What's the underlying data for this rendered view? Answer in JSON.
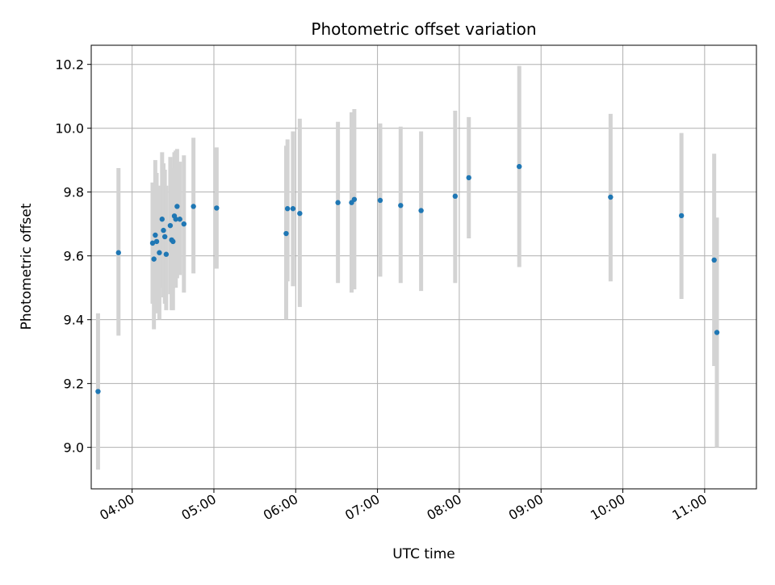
{
  "chart_data": {
    "type": "scatter",
    "title": "Photometric offset variation",
    "xlabel": "UTC time",
    "ylabel": "Photometric offset",
    "grid": true,
    "legend": "none",
    "x_tick_labels": [
      "04:00",
      "05:00",
      "06:00",
      "07:00",
      "08:00",
      "09:00",
      "10:00",
      "11:00"
    ],
    "x_tick_values": [
      "04:00",
      "05:00",
      "06:00",
      "07:00",
      "08:00",
      "09:00",
      "10:00",
      "11:00"
    ],
    "y_ticks": [
      9.0,
      9.2,
      9.4,
      9.6,
      9.8,
      10.0,
      10.2
    ],
    "xlim": [
      "03:30",
      "11:38"
    ],
    "ylim": [
      8.87,
      10.26
    ],
    "colors": {
      "marker": "#1f77b4",
      "errorbar": "#d3d3d3",
      "grid": "#b0b0b0"
    },
    "series": [
      {
        "points": [
          {
            "x": "03:35",
            "y": 9.175,
            "lo": 8.93,
            "hi": 9.42
          },
          {
            "x": "03:50",
            "y": 9.61,
            "lo": 9.35,
            "hi": 9.875
          },
          {
            "x": "04:15",
            "y": 9.64,
            "lo": 9.45,
            "hi": 9.83
          },
          {
            "x": "04:16",
            "y": 9.59,
            "lo": 9.37,
            "hi": 9.8
          },
          {
            "x": "04:17",
            "y": 9.665,
            "lo": 9.45,
            "hi": 9.9
          },
          {
            "x": "04:18",
            "y": 9.645,
            "lo": 9.42,
            "hi": 9.86
          },
          {
            "x": "04:20",
            "y": 9.61,
            "lo": 9.4,
            "hi": 9.82
          },
          {
            "x": "04:22",
            "y": 9.715,
            "lo": 9.5,
            "hi": 9.925
          },
          {
            "x": "04:23",
            "y": 9.68,
            "lo": 9.47,
            "hi": 9.89
          },
          {
            "x": "04:24",
            "y": 9.66,
            "lo": 9.45,
            "hi": 9.87
          },
          {
            "x": "04:25",
            "y": 9.605,
            "lo": 9.43,
            "hi": 9.82
          },
          {
            "x": "04:28",
            "y": 9.695,
            "lo": 9.48,
            "hi": 9.91
          },
          {
            "x": "04:29",
            "y": 9.65,
            "lo": 9.43,
            "hi": 9.875
          },
          {
            "x": "04:30",
            "y": 9.645,
            "lo": 9.43,
            "hi": 9.875
          },
          {
            "x": "04:31",
            "y": 9.725,
            "lo": 9.52,
            "hi": 9.925
          },
          {
            "x": "04:32",
            "y": 9.715,
            "lo": 9.5,
            "hi": 9.93
          },
          {
            "x": "04:33",
            "y": 9.755,
            "lo": 9.53,
            "hi": 9.935
          },
          {
            "x": "04:35",
            "y": 9.715,
            "lo": 9.54,
            "hi": 9.895
          },
          {
            "x": "04:38",
            "y": 9.7,
            "lo": 9.485,
            "hi": 9.915
          },
          {
            "x": "04:45",
            "y": 9.755,
            "lo": 9.545,
            "hi": 9.97
          },
          {
            "x": "05:02",
            "y": 9.75,
            "lo": 9.56,
            "hi": 9.94
          },
          {
            "x": "05:53",
            "y": 9.67,
            "lo": 9.4,
            "hi": 9.945
          },
          {
            "x": "05:54",
            "y": 9.748,
            "lo": 9.52,
            "hi": 9.965
          },
          {
            "x": "05:58",
            "y": 9.748,
            "lo": 9.505,
            "hi": 9.99
          },
          {
            "x": "06:03",
            "y": 9.733,
            "lo": 9.44,
            "hi": 10.03
          },
          {
            "x": "06:31",
            "y": 9.767,
            "lo": 9.515,
            "hi": 10.02
          },
          {
            "x": "06:41",
            "y": 9.767,
            "lo": 9.485,
            "hi": 10.05
          },
          {
            "x": "06:43",
            "y": 9.777,
            "lo": 9.495,
            "hi": 10.06
          },
          {
            "x": "07:02",
            "y": 9.774,
            "lo": 9.535,
            "hi": 10.015
          },
          {
            "x": "07:17",
            "y": 9.758,
            "lo": 9.515,
            "hi": 10.005
          },
          {
            "x": "07:32",
            "y": 9.742,
            "lo": 9.49,
            "hi": 9.99
          },
          {
            "x": "07:57",
            "y": 9.787,
            "lo": 9.515,
            "hi": 10.055
          },
          {
            "x": "08:07",
            "y": 9.845,
            "lo": 9.655,
            "hi": 10.035
          },
          {
            "x": "08:44",
            "y": 9.88,
            "lo": 9.565,
            "hi": 10.195
          },
          {
            "x": "09:51",
            "y": 9.784,
            "lo": 9.52,
            "hi": 10.045
          },
          {
            "x": "10:43",
            "y": 9.726,
            "lo": 9.465,
            "hi": 9.985
          },
          {
            "x": "11:07",
            "y": 9.587,
            "lo": 9.255,
            "hi": 9.92
          },
          {
            "x": "11:09",
            "y": 9.36,
            "lo": 9.0,
            "hi": 9.72
          }
        ]
      }
    ]
  }
}
